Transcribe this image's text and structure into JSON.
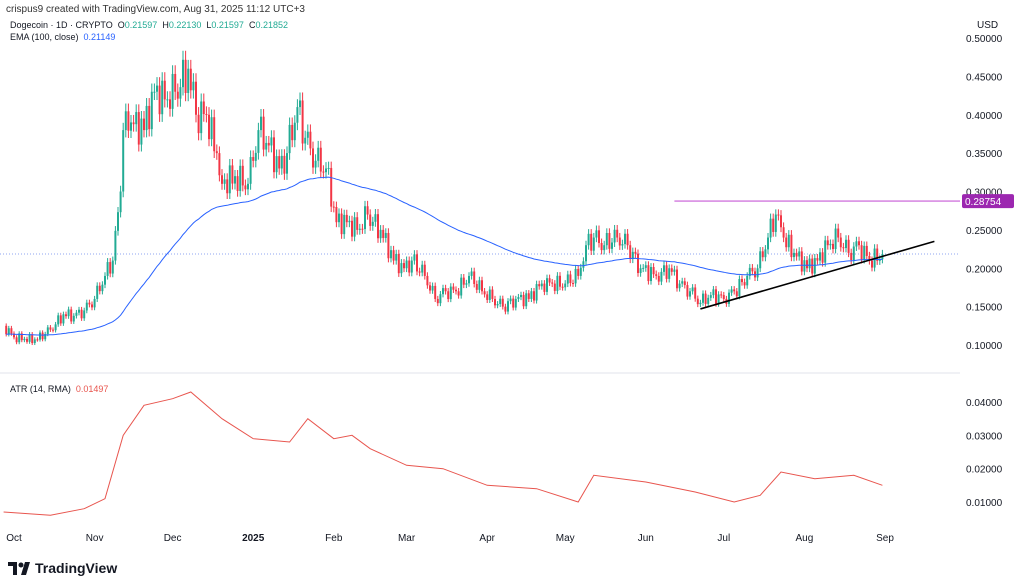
{
  "header": {
    "attribution": "crispus9 created with TradingView.com, Aug 31, 2025 11:12 UTC+3"
  },
  "legend": {
    "symbol": "Dogecoin · 1D · CRYPTO",
    "o_label": "O",
    "o": "0.21597",
    "h_label": "H",
    "h": "0.22130",
    "l_label": "L",
    "l": "0.21597",
    "c_label": "C",
    "c": "0.21852",
    "ema_label": "EMA (100, close)",
    "ema": "0.21149",
    "atr_label": "ATR (14, RMA)",
    "atr": "0.01497"
  },
  "logo": "TradingView",
  "colors": {
    "up": "#22ab94",
    "down": "#f23645",
    "ema": "#2962ff",
    "atr": "#e8554e",
    "resistance": "#c75ad6",
    "trendline": "#000000",
    "current_price_line": "#8fa6f0"
  },
  "chart_data": [
    {
      "type": "candlestick",
      "currency_label": "USD",
      "ylim": [
        0.08,
        0.52
      ],
      "yticks": [
        "0.50000",
        "0.45000",
        "0.40000",
        "0.35000",
        "0.30000",
        "0.25000",
        "0.20000",
        "0.15000",
        "0.10000"
      ],
      "xticks": [
        {
          "label": "Oct",
          "date": "2024-10-01"
        },
        {
          "label": "Nov",
          "date": "2024-11-01"
        },
        {
          "label": "Dec",
          "date": "2024-12-01"
        },
        {
          "label": "2025",
          "date": "2025-01-01"
        },
        {
          "label": "Feb",
          "date": "2025-02-01"
        },
        {
          "label": "Mar",
          "date": "2025-03-01"
        },
        {
          "label": "Apr",
          "date": "2025-04-01"
        },
        {
          "label": "May",
          "date": "2025-05-01"
        },
        {
          "label": "Jun",
          "date": "2025-06-01"
        },
        {
          "label": "Jul",
          "date": "2025-07-01"
        },
        {
          "label": "Aug",
          "date": "2025-08-01"
        },
        {
          "label": "Sep",
          "date": "2025-09-01"
        }
      ],
      "closes": [
        [
          "2024-09-27",
          0.125
        ],
        [
          "2024-10-01",
          0.11
        ],
        [
          "2024-10-05",
          0.108
        ],
        [
          "2024-10-10",
          0.107
        ],
        [
          "2024-10-15",
          0.12
        ],
        [
          "2024-10-20",
          0.14
        ],
        [
          "2024-10-24",
          0.138
        ],
        [
          "2024-10-28",
          0.145
        ],
        [
          "2024-11-01",
          0.16
        ],
        [
          "2024-11-05",
          0.19
        ],
        [
          "2024-11-08",
          0.21
        ],
        [
          "2024-11-11",
          0.3
        ],
        [
          "2024-11-12",
          0.38
        ],
        [
          "2024-11-15",
          0.39
        ],
        [
          "2024-11-20",
          0.38
        ],
        [
          "2024-11-24",
          0.43
        ],
        [
          "2024-11-28",
          0.42
        ],
        [
          "2024-12-02",
          0.43
        ],
        [
          "2024-12-07",
          0.46
        ],
        [
          "2024-12-10",
          0.4
        ],
        [
          "2024-12-14",
          0.4
        ],
        [
          "2024-12-18",
          0.35
        ],
        [
          "2024-12-20",
          0.31
        ],
        [
          "2024-12-25",
          0.32
        ],
        [
          "2024-12-30",
          0.31
        ],
        [
          "2025-01-03",
          0.38
        ],
        [
          "2025-01-07",
          0.36
        ],
        [
          "2025-01-11",
          0.33
        ],
        [
          "2025-01-14",
          0.35
        ],
        [
          "2025-01-18",
          0.41
        ],
        [
          "2025-01-21",
          0.37
        ],
        [
          "2025-01-25",
          0.34
        ],
        [
          "2025-01-29",
          0.33
        ],
        [
          "2025-02-02",
          0.26
        ],
        [
          "2025-02-06",
          0.26
        ],
        [
          "2025-02-10",
          0.25
        ],
        [
          "2025-02-14",
          0.27
        ],
        [
          "2025-02-19",
          0.25
        ],
        [
          "2025-02-24",
          0.21
        ],
        [
          "2025-02-28",
          0.2
        ],
        [
          "2025-03-03",
          0.21
        ],
        [
          "2025-03-08",
          0.19
        ],
        [
          "2025-03-12",
          0.16
        ],
        [
          "2025-03-16",
          0.17
        ],
        [
          "2025-03-20",
          0.17
        ],
        [
          "2025-03-25",
          0.19
        ],
        [
          "2025-03-30",
          0.17
        ],
        [
          "2025-04-03",
          0.16
        ],
        [
          "2025-04-07",
          0.15
        ],
        [
          "2025-04-12",
          0.16
        ],
        [
          "2025-04-17",
          0.16
        ],
        [
          "2025-04-22",
          0.18
        ],
        [
          "2025-04-26",
          0.18
        ],
        [
          "2025-05-01",
          0.18
        ],
        [
          "2025-05-06",
          0.19
        ],
        [
          "2025-05-09",
          0.23
        ],
        [
          "2025-05-12",
          0.24
        ],
        [
          "2025-05-16",
          0.23
        ],
        [
          "2025-05-21",
          0.24
        ],
        [
          "2025-05-25",
          0.23
        ],
        [
          "2025-05-30",
          0.2
        ],
        [
          "2025-06-05",
          0.19
        ],
        [
          "2025-06-10",
          0.2
        ],
        [
          "2025-06-14",
          0.18
        ],
        [
          "2025-06-18",
          0.17
        ],
        [
          "2025-06-22",
          0.155
        ],
        [
          "2025-06-26",
          0.165
        ],
        [
          "2025-07-01",
          0.16
        ],
        [
          "2025-07-05",
          0.17
        ],
        [
          "2025-07-10",
          0.19
        ],
        [
          "2025-07-14",
          0.2
        ],
        [
          "2025-07-18",
          0.24
        ],
        [
          "2025-07-21",
          0.27
        ],
        [
          "2025-07-24",
          0.24
        ],
        [
          "2025-07-28",
          0.22
        ],
        [
          "2025-08-02",
          0.2
        ],
        [
          "2025-08-06",
          0.21
        ],
        [
          "2025-08-10",
          0.23
        ],
        [
          "2025-08-14",
          0.24
        ],
        [
          "2025-08-18",
          0.22
        ],
        [
          "2025-08-22",
          0.23
        ],
        [
          "2025-08-26",
          0.21
        ],
        [
          "2025-08-31",
          0.2185
        ]
      ],
      "resistance": {
        "price": 0.28754,
        "label": "0.28754",
        "from": "2025-06-12"
      },
      "trendline": [
        [
          "2025-06-22",
          0.147
        ],
        [
          "2025-09-20",
          0.235
        ]
      ],
      "current_price": 0.21852
    },
    {
      "type": "line",
      "name": "ATR (14, RMA)",
      "ylim": [
        0.0,
        0.047
      ],
      "yticks": [
        "0.04000",
        "0.03000",
        "0.02000",
        "0.01000"
      ],
      "values": [
        [
          "2024-09-27",
          0.007
        ],
        [
          "2024-10-15",
          0.006
        ],
        [
          "2024-10-28",
          0.008
        ],
        [
          "2024-11-05",
          0.011
        ],
        [
          "2024-11-12",
          0.03
        ],
        [
          "2024-11-20",
          0.039
        ],
        [
          "2024-12-01",
          0.041
        ],
        [
          "2024-12-08",
          0.043
        ],
        [
          "2024-12-20",
          0.035
        ],
        [
          "2025-01-01",
          0.029
        ],
        [
          "2025-01-15",
          0.028
        ],
        [
          "2025-01-22",
          0.035
        ],
        [
          "2025-02-01",
          0.029
        ],
        [
          "2025-02-08",
          0.03
        ],
        [
          "2025-02-15",
          0.026
        ],
        [
          "2025-03-01",
          0.021
        ],
        [
          "2025-03-15",
          0.02
        ],
        [
          "2025-04-01",
          0.015
        ],
        [
          "2025-04-20",
          0.014
        ],
        [
          "2025-05-06",
          0.01
        ],
        [
          "2025-05-12",
          0.018
        ],
        [
          "2025-06-01",
          0.016
        ],
        [
          "2025-06-20",
          0.013
        ],
        [
          "2025-07-05",
          0.01
        ],
        [
          "2025-07-15",
          0.012
        ],
        [
          "2025-07-23",
          0.019
        ],
        [
          "2025-08-05",
          0.017
        ],
        [
          "2025-08-20",
          0.018
        ],
        [
          "2025-08-31",
          0.015
        ]
      ]
    }
  ]
}
